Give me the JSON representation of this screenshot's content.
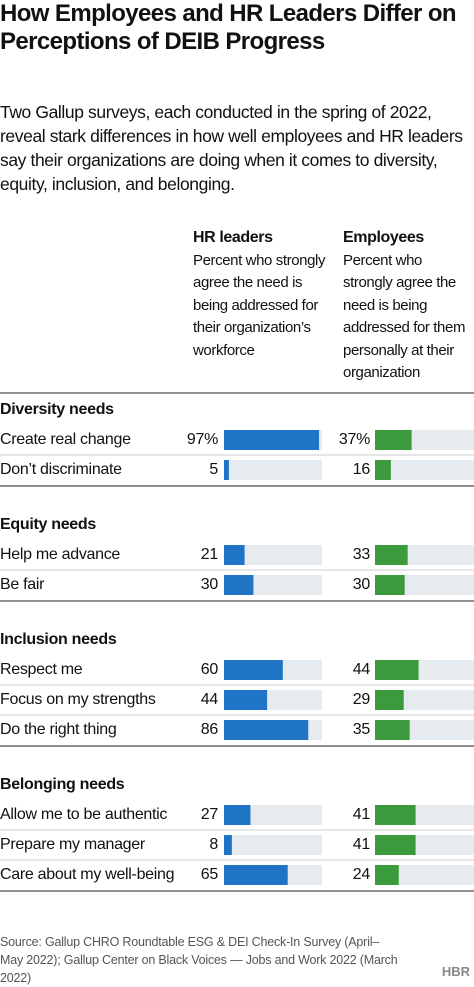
{
  "header": {
    "title": "How Employees and HR Leaders Differ on Perceptions of DEIB Progress",
    "subtitle": "Two Gallup surveys, each conducted in the spring of 2022, reveal stark differences in how well employees and HR leaders say their organizations are doing when it comes to diversity, equity, inclusion, and belonging."
  },
  "chart_data": {
    "type": "bar_table",
    "xlim": [
      0,
      100
    ],
    "columns": [
      {
        "name": "HR leaders",
        "description": "Percent who strongly agree the need is being addressed for their organization’s workforce",
        "color": "#1f74c6"
      },
      {
        "name": "Employees",
        "description": "Percent who strongly agree the need is being addressed for them personally at their organization",
        "color": "#3a9a3c"
      }
    ],
    "groups": [
      {
        "name": "Diversity needs",
        "rows": [
          {
            "label": "Create real change",
            "values": [
              97,
              37
            ],
            "value_labels": [
              "97%",
              "37%"
            ]
          },
          {
            "label": "Don’t discriminate",
            "values": [
              5,
              16
            ]
          }
        ]
      },
      {
        "name": "Equity needs",
        "rows": [
          {
            "label": "Help me advance",
            "values": [
              21,
              33
            ]
          },
          {
            "label": "Be fair",
            "values": [
              30,
              30
            ]
          }
        ]
      },
      {
        "name": "Inclusion needs",
        "rows": [
          {
            "label": "Respect me",
            "values": [
              60,
              44
            ]
          },
          {
            "label": "Focus on my strengths",
            "values": [
              44,
              29
            ]
          },
          {
            "label": "Do the right thing",
            "values": [
              86,
              35
            ]
          }
        ]
      },
      {
        "name": "Belonging needs",
        "rows": [
          {
            "label": "Allow me to be authentic",
            "values": [
              27,
              41
            ]
          },
          {
            "label": "Prepare my manager",
            "values": [
              8,
              41
            ]
          },
          {
            "label": "Care about my well-being",
            "values": [
              65,
              24
            ]
          }
        ]
      }
    ]
  },
  "footer": {
    "source": "Source: Gallup CHRO Roundtable ESG & DEI Check-In Survey (April–May 2022); Gallup Center on Black Voices — Jobs and Work 2022 (March 2022)",
    "logo": "HBR"
  }
}
